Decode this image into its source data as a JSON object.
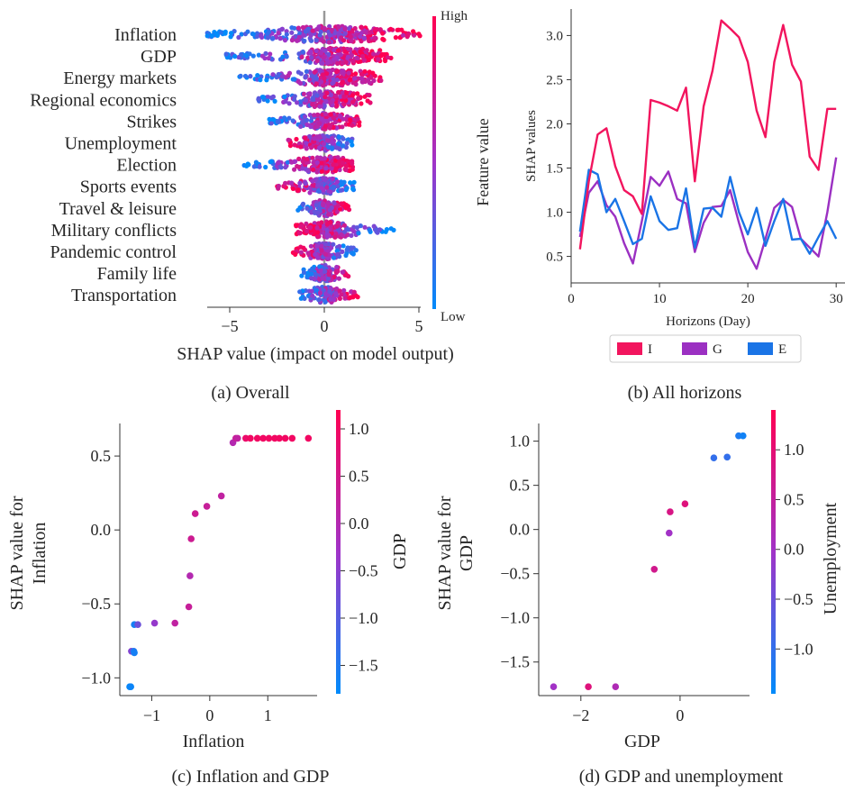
{
  "colors": {
    "high": "#ff0052",
    "mid": "#a033c8",
    "low": "#008bfb",
    "I": "#f2155e",
    "G": "#9b30c2",
    "E": "#1a74e6",
    "axis": "#333333"
  },
  "captions": {
    "a": "(a) Overall",
    "b": "(b) All horizons",
    "c": "(c) Inflation and GDP",
    "d": "(d) GDP and unemployment"
  },
  "chart_data": [
    {
      "type": "scatter",
      "kind": "beeswarm",
      "xlabel": "SHAP value (impact on model output)",
      "colorbar_label": "Feature value",
      "colorbar_high": "High",
      "colorbar_low": "Low",
      "xticks": [
        "−5",
        "0",
        "5"
      ],
      "xlim": [
        -7.2,
        6.3
      ],
      "features": [
        {
          "name": "Inflation",
          "min": -6.2,
          "max": 5.1,
          "center": 0.3
        },
        {
          "name": "GDP",
          "min": -5.2,
          "max": 3.6,
          "center": 0.8
        },
        {
          "name": "Energy markets",
          "min": -4.5,
          "max": 3.0,
          "center": 0.5
        },
        {
          "name": "Regional economics",
          "min": -3.5,
          "max": 2.5,
          "center": 0.3
        },
        {
          "name": "Strikes",
          "min": -2.9,
          "max": 2.0,
          "center": 0.1
        },
        {
          "name": "Unemployment",
          "min": -2.0,
          "max": 1.6,
          "center": 0.0
        },
        {
          "name": "Election",
          "min": -4.3,
          "max": 1.5,
          "center": 0.0
        },
        {
          "name": "Sports events",
          "min": -2.5,
          "max": 1.6,
          "center": 0.0
        },
        {
          "name": "Travel & leisure",
          "min": -1.4,
          "max": 1.4,
          "center": 0.0
        },
        {
          "name": "Military conflicts",
          "min": -1.5,
          "max": 3.7,
          "center": 0.3
        },
        {
          "name": "Pandemic control",
          "min": -1.7,
          "max": 1.7,
          "center": 0.0
        },
        {
          "name": "Family life",
          "min": -1.2,
          "max": 1.3,
          "center": 0.0
        },
        {
          "name": "Transportation",
          "min": -1.3,
          "max": 1.8,
          "center": 0.0
        }
      ]
    },
    {
      "type": "line",
      "xlabel": "Horizons (Day)",
      "ylabel": "SHAP values",
      "xlim": [
        0,
        31
      ],
      "ylim": [
        0.2,
        3.3
      ],
      "xticks": [
        0,
        10,
        20,
        30
      ],
      "yticks": [
        "0.5",
        "1.0",
        "1.5",
        "2.0",
        "2.5",
        "3.0"
      ],
      "x": [
        1,
        2,
        3,
        4,
        5,
        6,
        7,
        8,
        9,
        10,
        11,
        12,
        13,
        14,
        15,
        16,
        17,
        18,
        19,
        20,
        21,
        22,
        23,
        24,
        25,
        26,
        27,
        28,
        29,
        30
      ],
      "series": [
        {
          "name": "I",
          "values": [
            0.58,
            1.35,
            1.88,
            1.95,
            1.52,
            1.25,
            1.18,
            0.98,
            2.27,
            2.24,
            2.2,
            2.15,
            2.41,
            1.35,
            2.2,
            2.6,
            3.17,
            3.08,
            2.98,
            2.7,
            2.15,
            1.85,
            2.7,
            3.12,
            2.67,
            2.48,
            1.63,
            1.48,
            2.17,
            2.17
          ]
        },
        {
          "name": "G",
          "values": [
            0.72,
            1.22,
            1.35,
            1.08,
            0.95,
            0.65,
            0.42,
            0.9,
            1.4,
            1.3,
            1.46,
            1.15,
            1.1,
            0.55,
            0.88,
            1.06,
            1.07,
            1.25,
            0.88,
            0.55,
            0.36,
            0.7,
            1.05,
            1.14,
            1.06,
            0.7,
            0.6,
            0.5,
            1.0,
            1.62
          ]
        },
        {
          "name": "E",
          "values": [
            0.78,
            1.48,
            1.43,
            1.0,
            1.15,
            0.9,
            0.64,
            0.7,
            1.18,
            0.9,
            0.8,
            0.82,
            1.27,
            0.6,
            1.04,
            1.05,
            0.95,
            1.4,
            1.0,
            0.75,
            1.05,
            0.62,
            0.9,
            1.15,
            0.69,
            0.7,
            0.53,
            0.72,
            0.9,
            0.7
          ]
        }
      ]
    },
    {
      "type": "scatter",
      "xlabel": "Inflation",
      "ylabel_lines": [
        "SHAP value for",
        "Inflation"
      ],
      "colorbar_label": "GDP",
      "xlim": [
        -1.55,
        1.85
      ],
      "ylim": [
        -1.12,
        0.72
      ],
      "xticks": [
        -1,
        0,
        1
      ],
      "xtick_labels": [
        "−1",
        "0",
        "1"
      ],
      "yticks": [
        -1.0,
        -0.5,
        0.0,
        0.5
      ],
      "ytick_labels": [
        "−1.0",
        "−0.5",
        "0.0",
        "0.5"
      ],
      "cbar_range": [
        -1.8,
        1.2
      ],
      "cbar_ticks": [
        1.0,
        0.5,
        0.0,
        -0.5,
        -1.0,
        -1.5
      ],
      "cbar_tick_labels": [
        "1.0",
        "0.5",
        "0.0",
        "−0.5",
        "−1.0",
        "−1.5"
      ],
      "points": [
        [
          -1.38,
          -1.06,
          -1.75
        ],
        [
          -1.36,
          -1.06,
          -1.7
        ],
        [
          -1.35,
          -0.82,
          -0.6
        ],
        [
          -1.31,
          -0.82,
          -1.5
        ],
        [
          -1.3,
          -0.83,
          -1.6
        ],
        [
          -1.3,
          -0.64,
          -1.6
        ],
        [
          -1.24,
          -0.64,
          -0.8
        ],
        [
          -0.95,
          -0.63,
          -0.4
        ],
        [
          -0.6,
          -0.63,
          0.2
        ],
        [
          -0.36,
          -0.52,
          0.3
        ],
        [
          -0.34,
          -0.31,
          0.0
        ],
        [
          -0.32,
          -0.06,
          0.4
        ],
        [
          -0.25,
          0.11,
          0.4
        ],
        [
          -0.05,
          0.16,
          0.3
        ],
        [
          0.2,
          0.23,
          0.2
        ],
        [
          0.4,
          0.59,
          0.0
        ],
        [
          0.45,
          0.62,
          0.3
        ],
        [
          0.48,
          0.62,
          0.2
        ],
        [
          0.62,
          0.62,
          0.9
        ],
        [
          0.7,
          0.62,
          1.0
        ],
        [
          0.82,
          0.62,
          1.0
        ],
        [
          0.92,
          0.62,
          1.0
        ],
        [
          1.02,
          0.62,
          1.0
        ],
        [
          1.12,
          0.62,
          1.0
        ],
        [
          1.2,
          0.62,
          1.0
        ],
        [
          1.3,
          0.62,
          1.0
        ],
        [
          1.42,
          0.62,
          1.0
        ],
        [
          1.7,
          0.62,
          1.0
        ]
      ]
    },
    {
      "type": "scatter",
      "xlabel": "GDP",
      "ylabel_lines": [
        "SHAP value for",
        "GDP"
      ],
      "colorbar_label": "Unemployment",
      "xlim": [
        -2.85,
        1.4
      ],
      "ylim": [
        -1.88,
        1.2
      ],
      "xticks": [
        -2,
        0
      ],
      "xtick_labels": [
        "−2",
        "0"
      ],
      "yticks": [
        1.0,
        0.5,
        0.0,
        -0.5,
        -1.0,
        -1.5
      ],
      "ytick_labels": [
        "1.0",
        "0.5",
        "0.0",
        "−0.5",
        "−1.0",
        "−1.5"
      ],
      "cbar_range": [
        -1.45,
        1.4
      ],
      "cbar_ticks": [
        1.0,
        0.5,
        0.0,
        -0.5,
        -1.0
      ],
      "cbar_tick_labels": [
        "1.0",
        "0.5",
        "0.0",
        "−0.5",
        "−1.0"
      ],
      "points": [
        [
          -2.55,
          -1.78,
          0.0
        ],
        [
          -1.85,
          -1.78,
          0.9
        ],
        [
          -1.3,
          -1.78,
          0.2
        ],
        [
          -0.52,
          -0.45,
          0.7
        ],
        [
          -0.22,
          -0.04,
          0.0
        ],
        [
          -0.2,
          0.2,
          0.8
        ],
        [
          0.1,
          0.29,
          0.9
        ],
        [
          0.68,
          0.81,
          -1.0
        ],
        [
          0.95,
          0.82,
          -1.0
        ],
        [
          1.18,
          1.06,
          -1.2
        ],
        [
          1.27,
          1.06,
          -1.3
        ]
      ]
    }
  ]
}
